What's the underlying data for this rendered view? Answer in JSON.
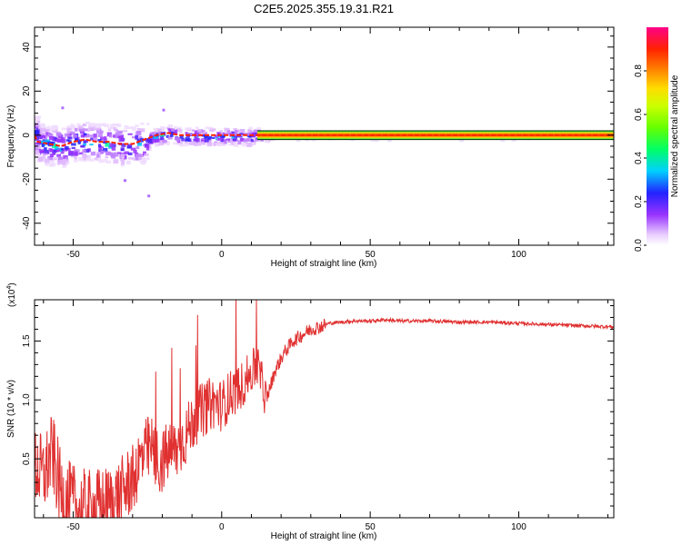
{
  "title": "C2E5.2025.355.19.31.R21",
  "colors": {
    "signal_line": "#e03030",
    "spectrum_ridge": "#e03030"
  },
  "chart_data": [
    {
      "type": "heatmap",
      "title": "C2E5.2025.355.19.31.R21",
      "xlabel": "Height of straight line (km)",
      "ylabel": "Frequency (Hz)",
      "xlim": [
        -63,
        132
      ],
      "ylim": [
        -50,
        49
      ],
      "xticks": [
        -50,
        0,
        50,
        100
      ],
      "xtick_labels": [
        "-50",
        "0",
        "50",
        "100"
      ],
      "yticks": [
        -40,
        -20,
        0,
        20,
        40
      ],
      "ytick_labels": [
        "-40",
        "-20",
        "0",
        "20",
        "40"
      ],
      "colorbar": {
        "label": "Normalized spectral amplitude",
        "range": [
          0,
          1
        ],
        "ticks": [
          0.0,
          0.2,
          0.4,
          0.6,
          0.8
        ],
        "tick_labels": [
          "0.0",
          "0.2",
          "0.4",
          "0.6",
          "0.8"
        ]
      },
      "ridge": {
        "description": "dominant frequency vs height",
        "x": [
          -62,
          -58,
          -54,
          -50,
          -46,
          -42,
          -38,
          -34,
          -30,
          -26,
          -22,
          -18,
          -14,
          -10,
          -6,
          -2,
          2,
          6,
          10,
          14,
          20,
          30,
          50,
          80,
          110,
          132
        ],
        "y": [
          -3,
          -4,
          -5,
          -3,
          -2,
          -3,
          -3,
          -4,
          -4,
          -2,
          0,
          1,
          0,
          0,
          0,
          0,
          0,
          0,
          0,
          0,
          0,
          0,
          0,
          0,
          0,
          0
        ]
      }
    },
    {
      "type": "line",
      "xlabel": "Height of straight line (km)",
      "ylabel": "SNR (10 * v/v)",
      "y_multiplier_label": "(x10",
      "y_multiplier_exp": "4",
      "xlim": [
        -63,
        132
      ],
      "ylim": [
        0,
        1.85
      ],
      "xticks": [
        -50,
        0,
        50,
        100
      ],
      "xtick_labels": [
        "-50",
        "0",
        "50",
        "100"
      ],
      "yticks": [
        0.5,
        1.0,
        1.5
      ],
      "ytick_labels": [
        "0.5",
        "1.0",
        "1.5"
      ],
      "series": [
        {
          "name": "SNR",
          "x": [
            -63,
            -60,
            -57,
            -54,
            -51,
            -48,
            -45,
            -42,
            -39,
            -36,
            -33,
            -30,
            -27,
            -24,
            -21,
            -18,
            -15,
            -12,
            -9,
            -6,
            -3,
            0,
            3,
            6,
            9,
            12,
            15,
            18,
            21,
            24,
            27,
            30,
            33,
            36,
            40,
            45,
            50,
            55,
            60,
            70,
            80,
            90,
            100,
            110,
            120,
            132
          ],
          "values": [
            0.45,
            0.35,
            0.55,
            0.2,
            0.12,
            0.07,
            0.05,
            0.08,
            0.1,
            0.15,
            0.22,
            0.35,
            0.5,
            0.6,
            0.45,
            0.55,
            0.58,
            0.7,
            0.85,
            0.92,
            0.98,
            0.95,
            1.05,
            1.1,
            1.2,
            1.3,
            1.0,
            1.25,
            1.4,
            1.5,
            1.55,
            1.6,
            1.62,
            1.65,
            1.66,
            1.67,
            1.67,
            1.68,
            1.67,
            1.67,
            1.66,
            1.66,
            1.65,
            1.64,
            1.63,
            1.62
          ]
        }
      ]
    }
  ]
}
